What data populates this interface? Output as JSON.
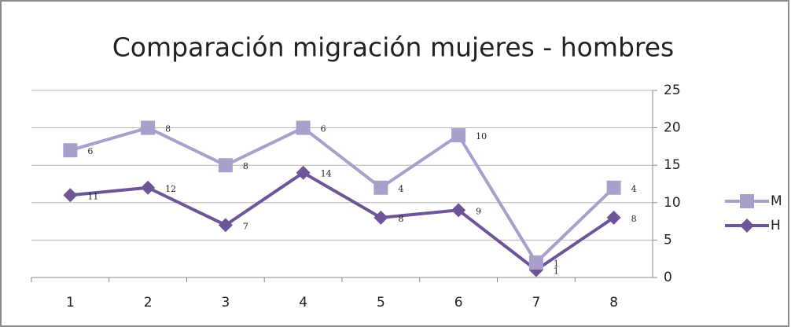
{
  "chart_data": {
    "type": "line",
    "stacked": true,
    "title": "Comparación migración mujeres - hombres",
    "categories": [
      "1",
      "2",
      "3",
      "4",
      "5",
      "6",
      "7",
      "8"
    ],
    "series": [
      {
        "name": "H",
        "color": "#6e5598",
        "marker": "diamond",
        "values": [
          11,
          12,
          7,
          14,
          8,
          9,
          1,
          8
        ]
      },
      {
        "name": "M",
        "color": "#a99fcb",
        "marker": "square",
        "values": [
          6,
          8,
          8,
          6,
          4,
          10,
          1,
          4
        ]
      }
    ],
    "ylim": [
      0,
      25
    ],
    "yticks": [
      0,
      5,
      10,
      15,
      20,
      25
    ],
    "y_axis_side": "right",
    "grid": true,
    "legend": "right"
  }
}
